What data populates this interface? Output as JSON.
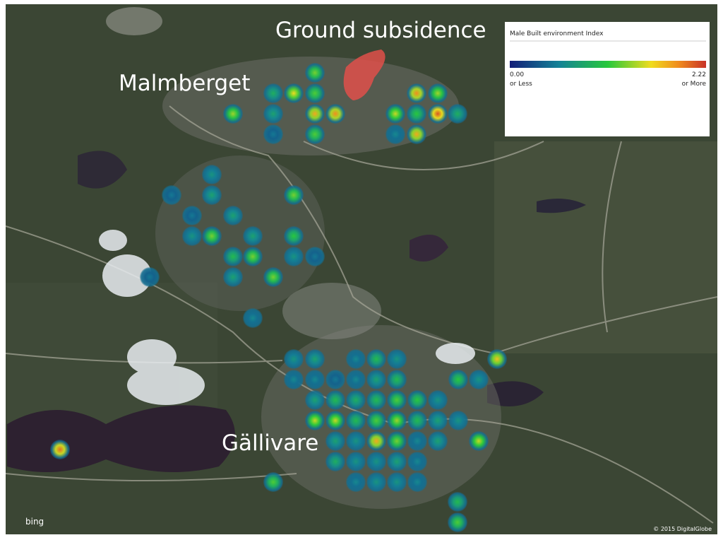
{
  "labels": {
    "ground_subsidence": "Ground subsidence",
    "malmberget": "Malmberget",
    "gallivare": "Gällivare"
  },
  "legend": {
    "title": "Male Built environment Index",
    "min": {
      "value": 0,
      "label": "0.00"
    },
    "min_note": "or Less",
    "max": {
      "value": 2.22,
      "label": "2.22"
    },
    "max_note": "or More"
  },
  "points": {
    "values": [
      1.3,
      0.9,
      1.6,
      1.2,
      1.4,
      0.8,
      1.8,
      1.9,
      0.5,
      1.2,
      1.9,
      1.4,
      1.5,
      1.1,
      2.1,
      0.9,
      0.6,
      1.8,
      0.7,
      0.5,
      0.8,
      1.3,
      0.5,
      0.8,
      0.7,
      1.3,
      0.8,
      1.1,
      1.0,
      1.3,
      0.7,
      0.5,
      0.5,
      0.8,
      1.3,
      0.6,
      0.7,
      0.8,
      0.6,
      1.0,
      0.7,
      1.7,
      0.6,
      0.6,
      0.5,
      0.6,
      0.8,
      1.0,
      1.1,
      0.7,
      0.8,
      1.0,
      0.9,
      1.0,
      1.2,
      1.1,
      0.7,
      1.5,
      1.5,
      1.0,
      1.2,
      1.4,
      1.0,
      0.8,
      0.7,
      0.8,
      0.7,
      1.8,
      1.3,
      0.6,
      0.8,
      1.5,
      0.9,
      0.7,
      0.7,
      0.8,
      0.6,
      0.6,
      0.7,
      0.7,
      0.6,
      1.2,
      2.0,
      1.0,
      1.2
    ]
  },
  "attribution": {
    "provider": "bing",
    "copyright": "© 2015 DigitalGlobe"
  }
}
